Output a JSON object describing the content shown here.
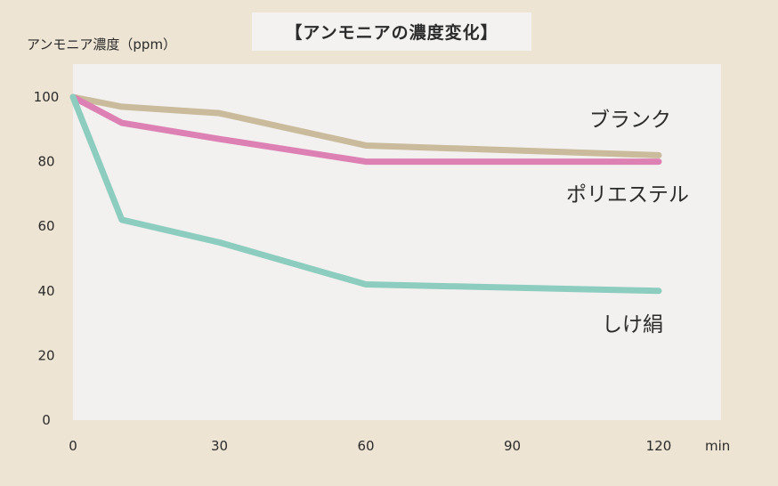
{
  "chart_data": {
    "type": "line",
    "title": "【アンモニアの濃度変化】",
    "ylabel": "アンモニア濃度（ppm）",
    "xlabel": "min",
    "x_ticks": [
      0,
      30,
      60,
      90,
      120
    ],
    "y_ticks": [
      0,
      20,
      40,
      60,
      80,
      100
    ],
    "xlim": [
      0,
      120
    ],
    "ylim": [
      0,
      100
    ],
    "grid": false,
    "legend": "labels next to line ends",
    "series": [
      {
        "name": "ブランク",
        "color": "#c9bb9b",
        "x": [
          0,
          10,
          30,
          60,
          120
        ],
        "y": [
          100,
          97,
          95,
          85,
          82
        ]
      },
      {
        "name": "ポリエステル",
        "color": "#dd80b3",
        "x": [
          0,
          10,
          30,
          60,
          120
        ],
        "y": [
          100,
          92,
          87,
          80,
          80
        ]
      },
      {
        "name": "しけ絹",
        "color": "#8dcdbf",
        "x": [
          0,
          10,
          30,
          60,
          120
        ],
        "y": [
          100,
          62,
          55,
          42,
          40
        ]
      }
    ]
  },
  "colors": {
    "page_background": "#ede4d3",
    "plot_background": "#f3f1ef"
  }
}
